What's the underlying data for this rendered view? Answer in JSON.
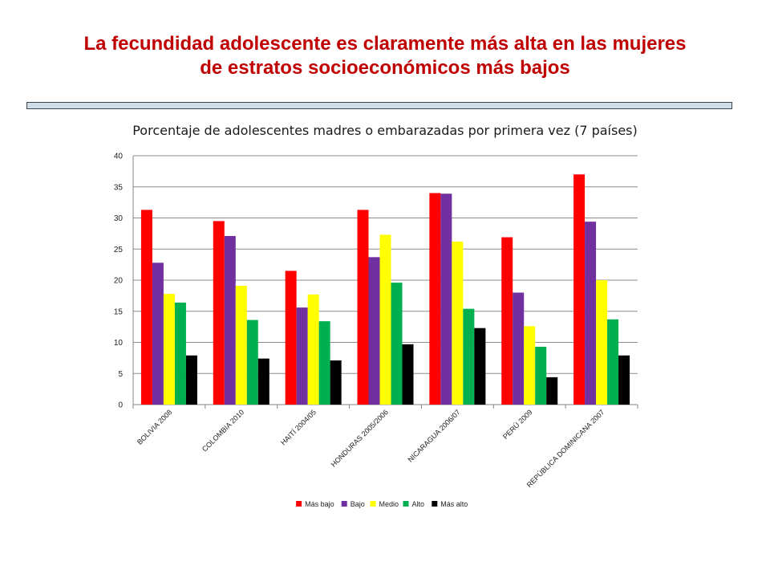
{
  "slide": {
    "title_line1": "La fecundidad adolescente es claramente más alta en las mujeres",
    "title_line2": "de estratos socioeconómicos más bajos"
  },
  "colors": {
    "title": "#c00000",
    "series": [
      "#ff0000",
      "#7030a0",
      "#ffff00",
      "#00b050",
      "#000000"
    ]
  },
  "chart_data": {
    "type": "bar",
    "title": "Porcentaje de adolescentes madres o embarazadas por primera vez (7 países)",
    "xlabel": "",
    "ylabel": "",
    "ylim": [
      0,
      40
    ],
    "yticks": [
      0,
      5,
      10,
      15,
      20,
      25,
      30,
      35,
      40
    ],
    "grid": true,
    "legend": "bottom",
    "categories": [
      "BOLIVIA 2008",
      "COLOMBIA 2010",
      "HAITÍ 2004/05",
      "HONDURAS 2005/2006",
      "NICARAGUA 2006/07",
      "PERÚ 2009",
      "REPÚBLICA DOMINICANA 2007"
    ],
    "series": [
      {
        "name": "Más bajo",
        "values": [
          31.3,
          29.5,
          21.5,
          31.3,
          34.0,
          26.9,
          37.0
        ]
      },
      {
        "name": "Bajo",
        "values": [
          22.8,
          27.1,
          15.6,
          23.7,
          33.9,
          18.0,
          29.4
        ]
      },
      {
        "name": "Medio",
        "values": [
          17.8,
          19.1,
          17.7,
          27.3,
          26.2,
          12.6,
          20.0
        ]
      },
      {
        "name": "Alto",
        "values": [
          16.4,
          13.6,
          13.4,
          19.6,
          15.4,
          9.3,
          13.7
        ]
      },
      {
        "name": "Más alto",
        "values": [
          7.9,
          7.4,
          7.1,
          9.7,
          12.3,
          4.4,
          7.9
        ]
      }
    ]
  }
}
